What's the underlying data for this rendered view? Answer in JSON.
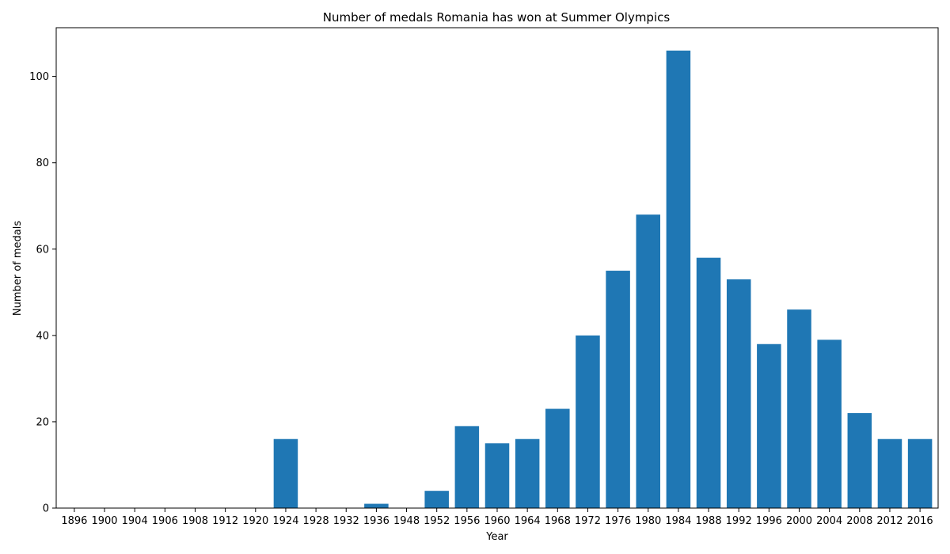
{
  "chart_data": {
    "type": "bar",
    "title": "Number of medals Romania has won at Summer Olympics",
    "xlabel": "Year",
    "ylabel": "Number of medals",
    "categories": [
      "1896",
      "1900",
      "1904",
      "1906",
      "1908",
      "1912",
      "1920",
      "1924",
      "1928",
      "1932",
      "1936",
      "1948",
      "1952",
      "1956",
      "1960",
      "1964",
      "1968",
      "1972",
      "1976",
      "1980",
      "1984",
      "1988",
      "1992",
      "1996",
      "2000",
      "2004",
      "2008",
      "2012",
      "2016"
    ],
    "values": [
      0,
      0,
      0,
      0,
      0,
      0,
      0,
      16,
      0,
      0,
      1,
      0,
      4,
      19,
      15,
      16,
      23,
      40,
      55,
      68,
      106,
      58,
      53,
      38,
      46,
      39,
      22,
      16,
      16
    ],
    "ylim": [
      0,
      111.3
    ],
    "yticks": [
      0,
      20,
      40,
      60,
      80,
      100
    ],
    "bar_color": "#1f77b4",
    "grid": false,
    "legend": "none"
  }
}
